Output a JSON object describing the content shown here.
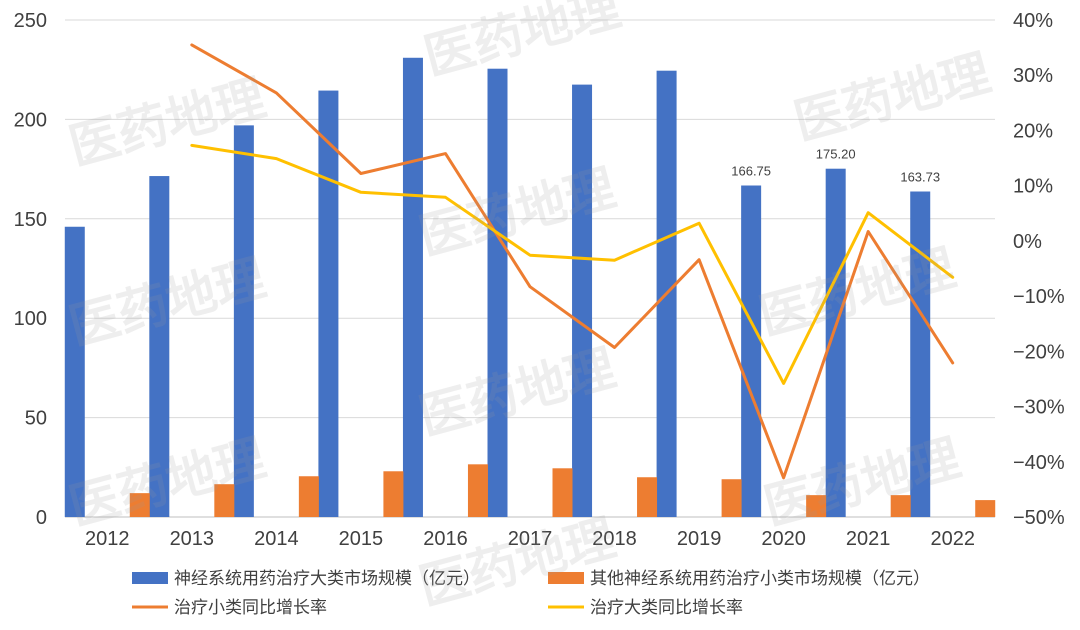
{
  "watermark": "医药地理",
  "chart_data": {
    "type": "bar",
    "categories": [
      "2012",
      "2013",
      "2014",
      "2015",
      "2016",
      "2017",
      "2018",
      "2019",
      "2020",
      "2021",
      "2022"
    ],
    "ylim": [
      0,
      250
    ],
    "yticks": [
      "0",
      "50",
      "100",
      "150",
      "200",
      "250"
    ],
    "y2lim": [
      -50,
      40
    ],
    "y2ticks": [
      "40%",
      "30%",
      "20%",
      "10%",
      "0%",
      "−10%",
      "−20%",
      "−30%",
      "−40%",
      "−50%"
    ],
    "grid": true,
    "legend_position": "bottom",
    "bar_series": [
      {
        "name": "神经系统用药治疗大类市场规模（亿元）",
        "color": "#4472C4",
        "values": [
          146,
          171.5,
          197,
          214.5,
          231,
          225.5,
          217.5,
          224.5,
          166.75,
          175.2,
          163.73
        ],
        "data_labels": [
          "",
          "",
          "",
          "",
          "",
          "",
          "",
          "",
          "166.75",
          "175.20",
          "163.73"
        ]
      },
      {
        "name": "其他神经系统用药治疗小类市场规模（亿元）",
        "color": "#ED7D31",
        "values": [
          12,
          16.5,
          20.5,
          23,
          26.5,
          24.5,
          20,
          19,
          11,
          11,
          8.5
        ]
      }
    ],
    "line_series": [
      {
        "name": "治疗小类同比增长率",
        "color": "#ED7D31",
        "values": [
          null,
          35.5,
          26.8,
          12.2,
          15.8,
          -8.3,
          -19.3,
          -3.4,
          -42.9,
          1.7,
          -22.1
        ]
      },
      {
        "name": "治疗大类同比增长率",
        "color": "#FFC000",
        "values": [
          null,
          17.3,
          14.9,
          8.8,
          7.9,
          -2.6,
          -3.5,
          3.2,
          -25.8,
          5.1,
          -6.6
        ]
      }
    ]
  }
}
